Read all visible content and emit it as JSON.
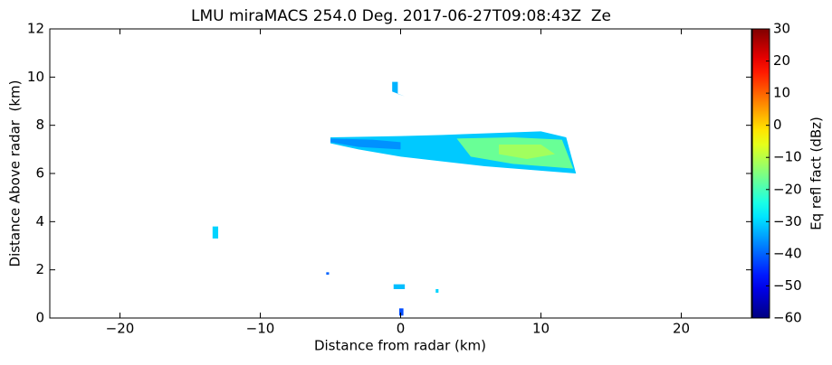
{
  "chart_data": {
    "type": "rhi",
    "title": "LMU miraMACS 254.0 Deg. 2017-06-27T09:08:43Z  Ze",
    "x_label": "Distance from radar (km)",
    "y_label": "Distance Above radar  (km)",
    "xlim": [
      -25,
      25
    ],
    "ylim": [
      0,
      12
    ],
    "xticks": [
      {
        "value": -20,
        "label": "−20"
      },
      {
        "value": -10,
        "label": "−10"
      },
      0,
      10,
      20
    ],
    "yticks": [
      0,
      2,
      4,
      6,
      8,
      10,
      12
    ],
    "colormap": "jet",
    "colorbar": {
      "label": "Eq refl fact (dBz)",
      "clim": [
        -60,
        30
      ],
      "ticks": [
        {
          "value": -60,
          "label": "−60"
        },
        {
          "value": -50,
          "label": "−50"
        },
        {
          "value": -40,
          "label": "−40"
        },
        {
          "value": -30,
          "label": "−30"
        },
        {
          "value": -20,
          "label": "−20"
        },
        {
          "value": -10,
          "label": "−10"
        },
        0,
        10,
        20,
        30
      ]
    },
    "echoes": [
      {
        "points": [
          [
            -5,
            7.5
          ],
          [
            0,
            7.55
          ],
          [
            3,
            7.6
          ],
          [
            10,
            7.75
          ],
          [
            11.8,
            7.5
          ],
          [
            12.5,
            6.0
          ],
          [
            6,
            6.3
          ],
          [
            0,
            6.7
          ],
          [
            -3,
            7.0
          ],
          [
            -5,
            7.25
          ]
        ],
        "value": -31
      },
      {
        "points": [
          [
            -5,
            7.45
          ],
          [
            -2,
            7.4
          ],
          [
            0,
            7.3
          ],
          [
            0,
            7.0
          ],
          [
            -3,
            7.1
          ],
          [
            -5,
            7.3
          ]
        ],
        "value": -36
      },
      {
        "points": [
          [
            4,
            7.45
          ],
          [
            8,
            7.5
          ],
          [
            11.5,
            7.4
          ],
          [
            12.3,
            6.2
          ],
          [
            8,
            6.4
          ],
          [
            5,
            6.7
          ]
        ],
        "value": -17
      },
      {
        "points": [
          [
            7,
            7.2
          ],
          [
            10,
            7.2
          ],
          [
            11,
            6.8
          ],
          [
            9,
            6.6
          ],
          [
            7,
            6.8
          ]
        ],
        "value": -12
      },
      {
        "points": [
          [
            -0.6,
            9.8
          ],
          [
            -0.2,
            9.8
          ],
          [
            -0.2,
            9.3
          ],
          [
            0.3,
            9.2
          ],
          [
            -0.6,
            9.4
          ]
        ],
        "value": -33
      },
      {
        "points": [
          [
            -13.4,
            3.8
          ],
          [
            -13.0,
            3.8
          ],
          [
            -13.0,
            3.3
          ],
          [
            -13.4,
            3.3
          ]
        ],
        "value": -30
      },
      {
        "points": [
          [
            -5.3,
            1.9
          ],
          [
            -5.1,
            1.9
          ],
          [
            -5.1,
            1.8
          ],
          [
            -5.3,
            1.8
          ]
        ],
        "value": -40
      },
      {
        "points": [
          [
            -0.5,
            1.4
          ],
          [
            0.3,
            1.4
          ],
          [
            0.3,
            1.2
          ],
          [
            -0.5,
            1.2
          ]
        ],
        "value": -32
      },
      {
        "points": [
          [
            -0.1,
            0.4
          ],
          [
            0.2,
            0.4
          ],
          [
            0.2,
            0.1
          ],
          [
            -0.1,
            0.1
          ]
        ],
        "value": -42
      },
      {
        "points": [
          [
            2.5,
            1.2
          ],
          [
            2.7,
            1.2
          ],
          [
            2.7,
            1.05
          ],
          [
            2.5,
            1.05
          ]
        ],
        "value": -30
      }
    ]
  }
}
